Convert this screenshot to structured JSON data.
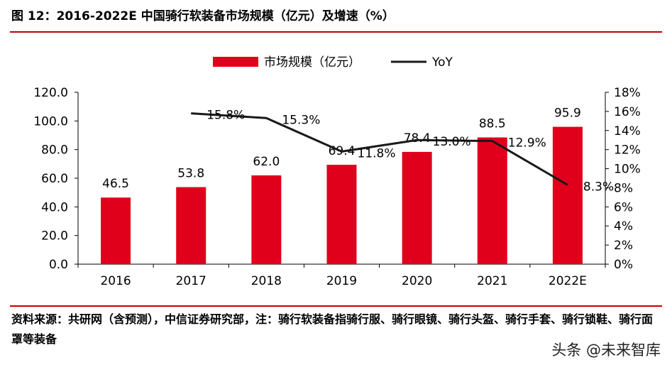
{
  "header": {
    "title": "图 12：2016-2022E 中国骑行软装备市场规模（亿元）及增速（%）"
  },
  "footer": {
    "source": "资料来源：共研网（含预测），中信证券研究部，注：骑行软装备指骑行服、骑行眼镜、骑行头盔、骑行手套、骑行锁鞋、骑行面罩等装备",
    "watermark": "头条 @未来智库"
  },
  "colors": {
    "bar": "#e0001b",
    "line": "#1a1a1a",
    "accent_rule": "#c00000"
  },
  "chart_data": {
    "type": "bar",
    "categories": [
      "2016",
      "2017",
      "2018",
      "2019",
      "2020",
      "2021",
      "2022E"
    ],
    "series": [
      {
        "name": "市场规模（亿元）",
        "type": "bar",
        "axis": "left",
        "values": [
          46.5,
          53.8,
          62.0,
          69.4,
          78.4,
          88.5,
          95.9
        ],
        "labels": [
          "46.5",
          "53.8",
          "62.0",
          "69.4",
          "78.4",
          "88.5",
          "95.9"
        ]
      },
      {
        "name": "YoY",
        "type": "line",
        "axis": "right",
        "values": [
          null,
          15.8,
          15.3,
          11.8,
          13.0,
          12.9,
          8.3
        ],
        "labels": [
          "",
          "15.8%",
          "15.3%",
          "11.8%",
          "13.0%",
          "12.9%",
          "8.3%"
        ]
      }
    ],
    "y_left": {
      "ylim": [
        0,
        120
      ],
      "ticks": [
        "0.0",
        "20.0",
        "40.0",
        "60.0",
        "80.0",
        "100.0",
        "120.0"
      ]
    },
    "y_right": {
      "ylim": [
        0,
        18
      ],
      "ticks": [
        "0%",
        "2%",
        "4%",
        "6%",
        "8%",
        "10%",
        "12%",
        "14%",
        "16%",
        "18%"
      ]
    },
    "legend": "top-center",
    "grid": false
  }
}
